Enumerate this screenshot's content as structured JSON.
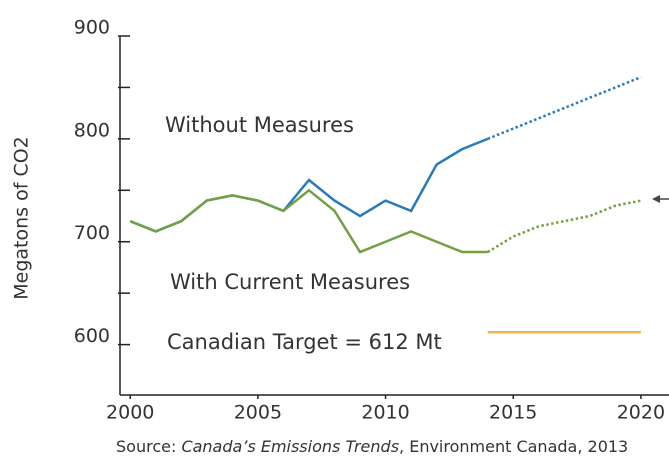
{
  "chart_data": {
    "type": "line",
    "y_label": "Megatons of CO2",
    "source": [
      "Source: ",
      "Canada’s Emissions Trends",
      ", Environment Canada, 2013"
    ],
    "x": [
      2000,
      2001,
      2002,
      2003,
      2004,
      2005,
      2006,
      2007,
      2008,
      2009,
      2010,
      2011,
      2012,
      2013,
      2014,
      2015,
      2016,
      2017,
      2018,
      2019,
      2020
    ],
    "series": [
      {
        "name": "Without Measures",
        "color": "#2a7ab8",
        "dotted_from": 2014,
        "values": [
          720,
          710,
          720,
          740,
          745,
          740,
          730,
          760,
          740,
          725,
          740,
          730,
          775,
          790,
          800,
          810,
          820,
          830,
          840,
          850,
          860
        ]
      },
      {
        "name": "With Current Measures",
        "color": "#72a043",
        "dotted_from": 2014,
        "values": [
          720,
          710,
          720,
          740,
          745,
          740,
          730,
          750,
          730,
          690,
          700,
          710,
          700,
          690,
          690,
          705,
          715,
          720,
          725,
          735,
          740
        ]
      },
      {
        "name": "Canadian Target = 612 Mt",
        "color": "#f5b54a",
        "values": [
          null,
          null,
          null,
          null,
          null,
          null,
          null,
          null,
          null,
          null,
          null,
          null,
          null,
          null,
          612,
          612,
          612,
          612,
          612,
          612,
          612
        ]
      }
    ],
    "xlim": [
      1999.6,
      2021.1
    ],
    "xticks": [
      2000,
      2005,
      2010,
      2015,
      2020
    ],
    "ylim": [
      551,
      900
    ],
    "yticks": [
      600,
      700,
      800,
      900
    ],
    "minor_yticks": [
      650,
      750,
      850
    ]
  }
}
